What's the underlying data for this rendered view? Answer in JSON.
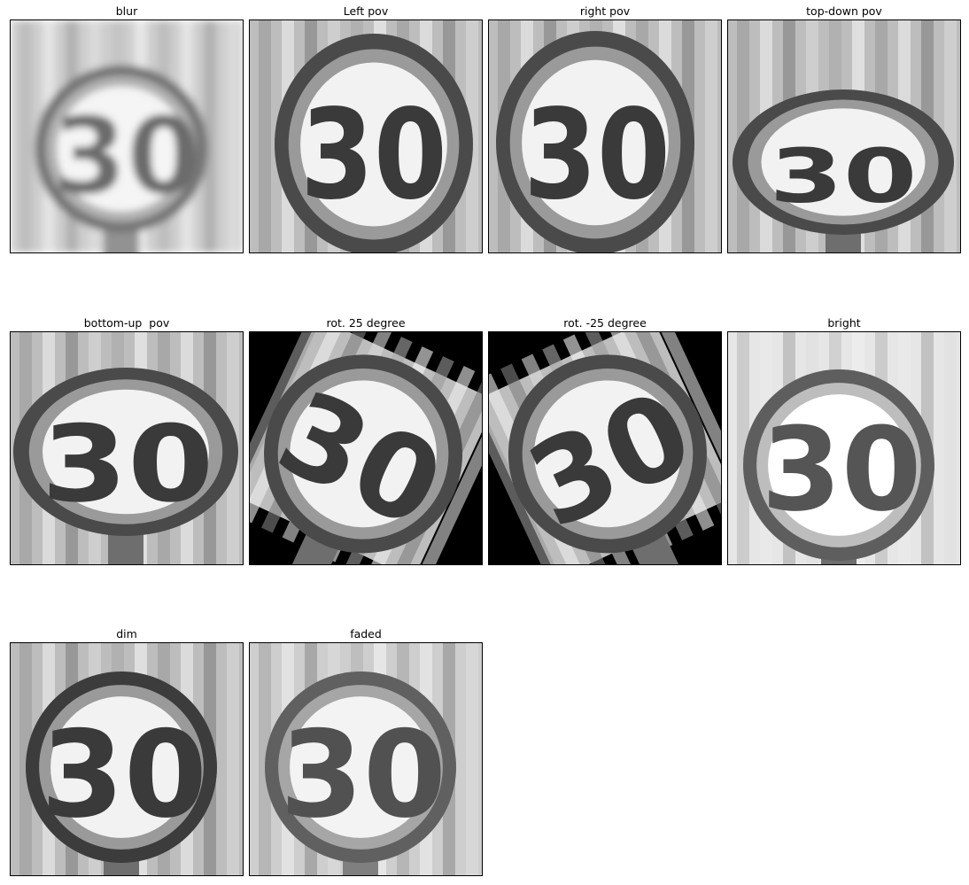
{
  "panels": [
    {
      "title": "blur",
      "variant": "blur"
    },
    {
      "title": "Left pov",
      "variant": "left"
    },
    {
      "title": "right pov",
      "variant": "right"
    },
    {
      "title": "top-down pov",
      "variant": "topdown"
    },
    {
      "title": "bottom-up  pov",
      "variant": "bottomup"
    },
    {
      "title": "rot. 25 degree",
      "variant": "rot_pos"
    },
    {
      "title": "rot. -25 degree",
      "variant": "rot_neg"
    },
    {
      "title": "bright",
      "variant": "bright"
    },
    {
      "title": "dim",
      "variant": "dim"
    },
    {
      "title": "faded",
      "variant": "faded"
    }
  ],
  "sign_text": "30",
  "colors": {
    "background": "#ffffff",
    "frame_border": "#000000",
    "sign_ring": "#4a4a4a",
    "sign_face": "#f2f2f2",
    "digits": "#3a3a3a",
    "rotation_fill": "#000000"
  }
}
